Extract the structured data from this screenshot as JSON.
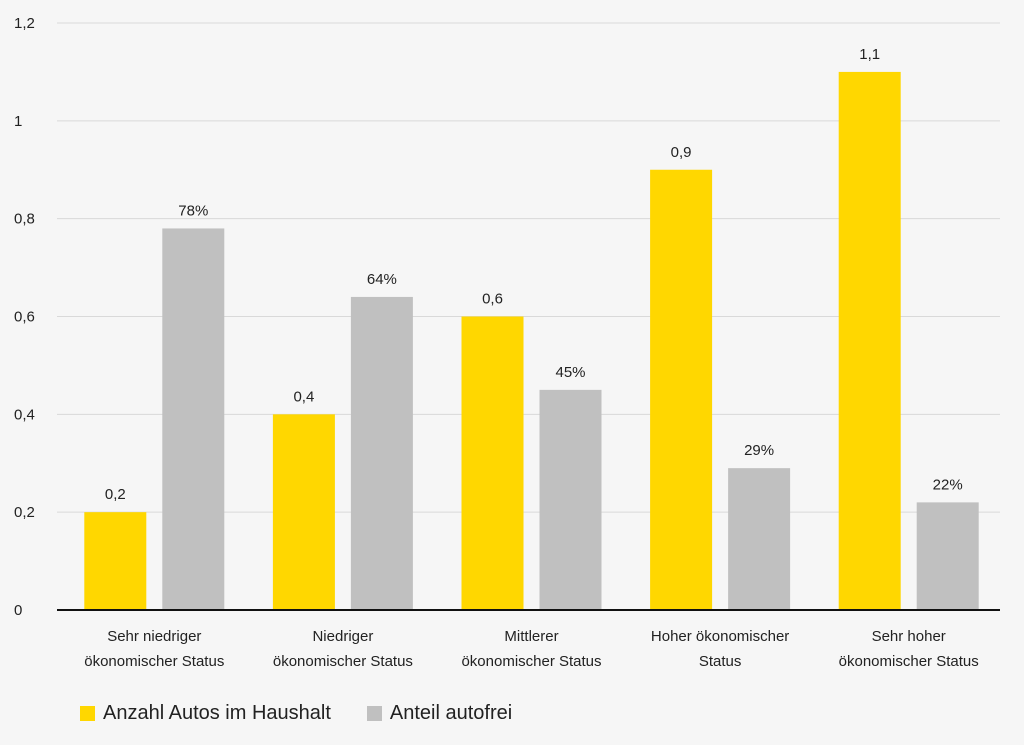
{
  "chart_data": {
    "type": "bar",
    "categories": [
      [
        "Sehr niedriger",
        "ökonomischer Status"
      ],
      [
        "Niedriger",
        "ökonomischer Status"
      ],
      [
        "Mittlerer",
        "ökonomischer Status"
      ],
      [
        "Hoher ökonomischer",
        "Status"
      ],
      [
        "Sehr hoher",
        "ökonomischer Status"
      ]
    ],
    "series": [
      {
        "name": "Anzahl Autos im Haushalt",
        "color": "#ffd700",
        "values": [
          0.2,
          0.4,
          0.6,
          0.9,
          1.1
        ],
        "labels": [
          "0,2",
          "0,4",
          "0,6",
          "0,9",
          "1,1"
        ]
      },
      {
        "name": "Anteil autofrei",
        "color": "#c0c0c0",
        "values": [
          0.78,
          0.64,
          0.45,
          0.29,
          0.22
        ],
        "labels": [
          "78%",
          "64%",
          "45%",
          "29%",
          "22%"
        ]
      }
    ],
    "yticks": [
      0,
      0.2,
      0.4,
      0.6,
      0.8,
      1,
      1.2
    ],
    "ytick_labels": [
      "0",
      "0,2",
      "0,4",
      "0,6",
      "0,8",
      "1",
      "1,2"
    ],
    "ylim": [
      0,
      1.2
    ],
    "grid": true,
    "legend_position": "bottom-left"
  }
}
